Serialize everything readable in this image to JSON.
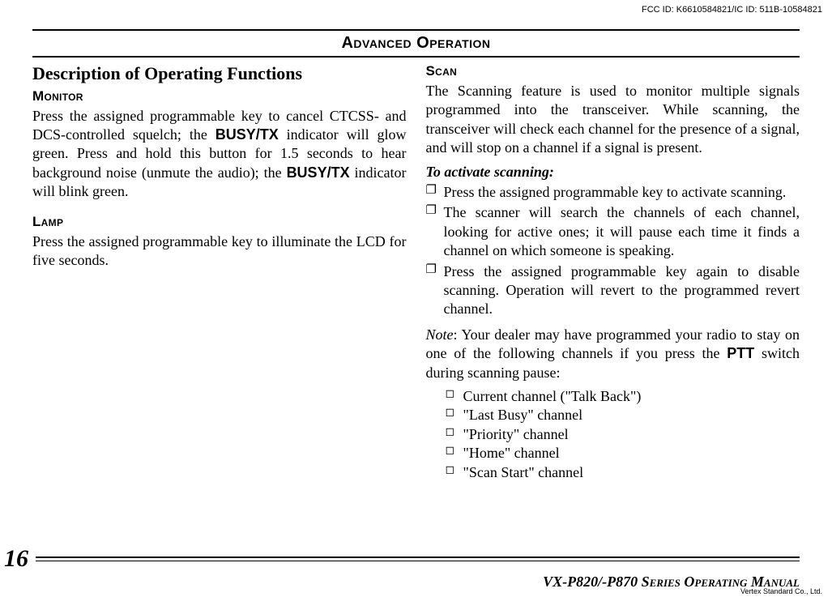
{
  "header": {
    "fcc": "FCC ID: K6610584821/IC ID: 511B-10584821",
    "title": "Advanced Operation"
  },
  "left": {
    "heading": "Description of Operating Functions",
    "monitor": {
      "title": "Monitor",
      "p1a": "Press the assigned programmable key to cancel CTCSS- and DCS-controlled squelch; the ",
      "busy": "BUSY/TX",
      "p1b": " indicator will glow green. Press and hold this button for 1.5 seconds to hear background noise (unmute the audio); the ",
      "busy2": "BUSY/TX",
      "p1c": " indicator will blink green."
    },
    "lamp": {
      "title": "Lamp",
      "p": "Press the assigned programmable key to illuminate the LCD for five seconds."
    }
  },
  "right": {
    "scan": {
      "title": "Scan",
      "p": "The Scanning feature is used to monitor multiple signals programmed into the transceiver. While scanning, the transceiver will check each channel for the presence of a signal, and will stop on a channel if a signal is present.",
      "activate_label": "To activate scanning:",
      "steps": [
        "Press the assigned programmable key to activate scanning.",
        "The scanner will search the channels of each channel, looking for active ones; it will pause each time it finds a channel on which someone is speaking.",
        "Press the assigned programmable key again to disable scanning. Operation will revert to the programmed revert channel."
      ],
      "note_label": "Note",
      "note_a": ": Your dealer may have programmed your radio to stay on one of the following channels if you press the ",
      "ptt": "PTT",
      "note_b": " switch during scanning pause:",
      "note_items": [
        "Current channel (\"Talk Back\")",
        "\"Last Busy\" channel",
        "\"Priority\" channel",
        "\"Home\" channel",
        "\"Scan Start\" channel"
      ]
    }
  },
  "footer": {
    "page": "16",
    "manual": "VX-P820/-P870 Series Operating Manual",
    "vendor": "Vertex Standard Co., Ltd."
  }
}
